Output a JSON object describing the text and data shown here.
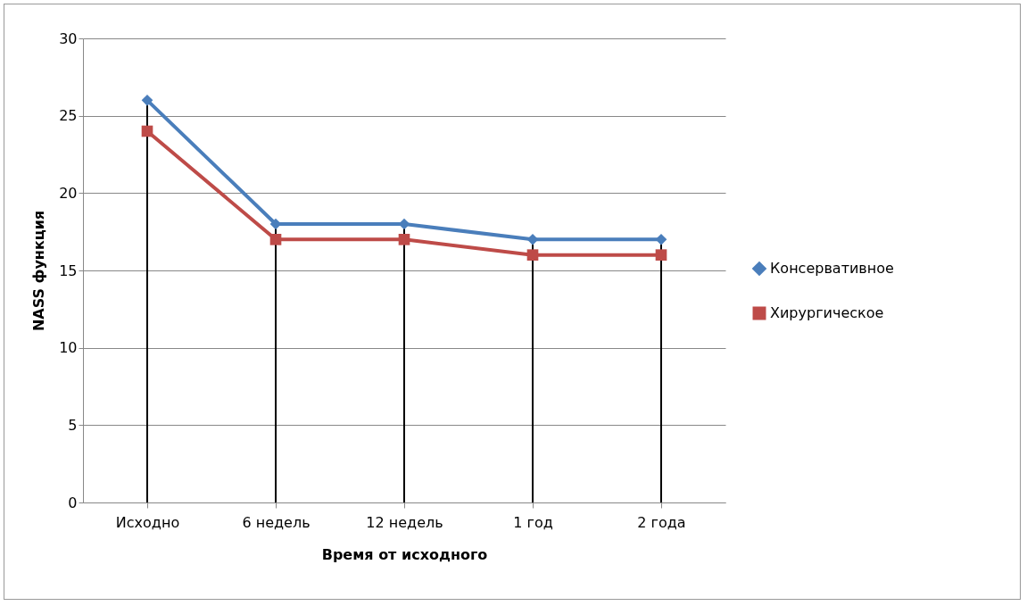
{
  "chart_data": {
    "type": "line",
    "xlabel": "Время от исходного",
    "ylabel": "NASS функция",
    "categories": [
      "Исходно",
      "6 недель",
      "12 недель",
      "1 год",
      "2 года"
    ],
    "series": [
      {
        "name": "Консервативное",
        "color": "#4a7ebb",
        "marker": "diamond",
        "values": [
          26,
          18,
          18,
          17,
          17
        ],
        "errors": [
          [
            0,
            26
          ],
          [
            0,
            18
          ],
          [
            0,
            18
          ],
          [
            0,
            17
          ],
          [
            0,
            17
          ]
        ]
      },
      {
        "name": "Хирургическое",
        "color": "#be4b48",
        "marker": "square",
        "values": [
          24,
          17,
          17,
          16,
          16
        ]
      }
    ],
    "ylim": [
      0,
      30
    ],
    "yticks": [
      0,
      5,
      10,
      15,
      20,
      25,
      30
    ],
    "grid": "y",
    "legend": "right",
    "line_style": "solid"
  }
}
